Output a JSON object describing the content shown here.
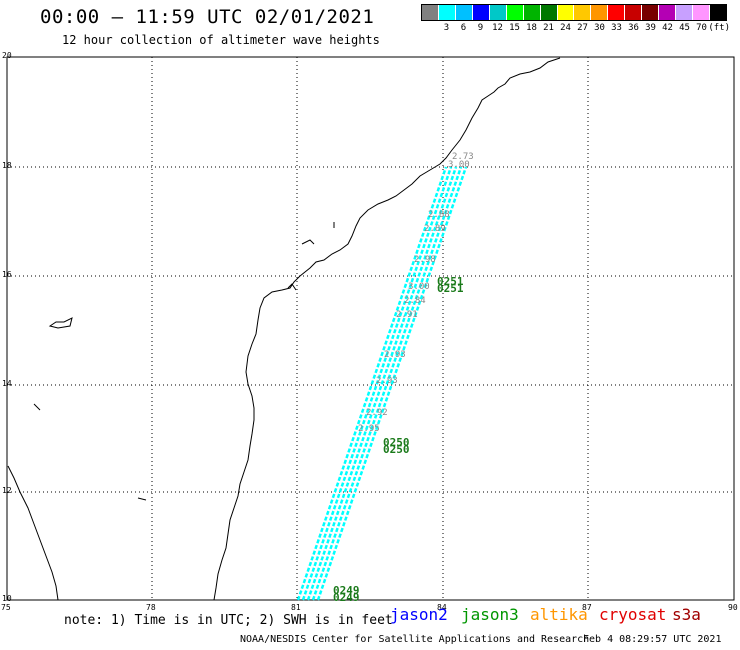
{
  "header": {
    "title": "00:00 – 11:59 UTC 02/01/2021",
    "subtitle": "12 hour collection of altimeter wave heights"
  },
  "legend": {
    "colors": [
      "#808080",
      "#00ffff",
      "#00c0ff",
      "#0000ff",
      "#00c8c8",
      "#00ff00",
      "#00b400",
      "#007800",
      "#ffff00",
      "#ffc800",
      "#ff9600",
      "#ff0000",
      "#c80000",
      "#780000",
      "#b400b4",
      "#c8a0ff",
      "#ff96ff",
      "#000000"
    ],
    "labels": [
      "3",
      "6",
      "9",
      "12",
      "15",
      "18",
      "21",
      "24",
      "27",
      "30",
      "33",
      "36",
      "39",
      "42",
      "45",
      "70"
    ],
    "unit": "(ft)"
  },
  "axes": {
    "x_ticks": [
      "75",
      "78",
      "81",
      "84",
      "87",
      "90"
    ],
    "y_ticks": [
      "20",
      "18",
      "16",
      "14",
      "12",
      "10"
    ]
  },
  "passes": [
    {
      "id": "0251",
      "color": "#1a7a1a"
    },
    {
      "id": "0250",
      "color": "#1a7a1a"
    },
    {
      "id": "0249",
      "color": "#1a7a1a"
    }
  ],
  "swh_labels": [
    "2.73",
    "3.00",
    "2.88",
    "2.89",
    "2.98",
    "3.00",
    "2.84",
    "2.91",
    "2.93",
    "2.93",
    "2.92",
    "2.95"
  ],
  "footer": {
    "note": "note: 1) Time is in UTC; 2) SWH is in feet",
    "missions": [
      {
        "name": "jason2",
        "color": "#0000ff"
      },
      {
        "name": "jason3",
        "color": "#009600"
      },
      {
        "name": "altika",
        "color": "#ff9600"
      },
      {
        "name": "cryosat",
        "color": "#e00000"
      },
      {
        "name": "s3a",
        "color": "#a00000"
      }
    ],
    "credit": "NOAA/NESDIS Center for Satellite Applications and Research",
    "timestamp": "Feb  4 08:29:57 UTC 2021"
  }
}
